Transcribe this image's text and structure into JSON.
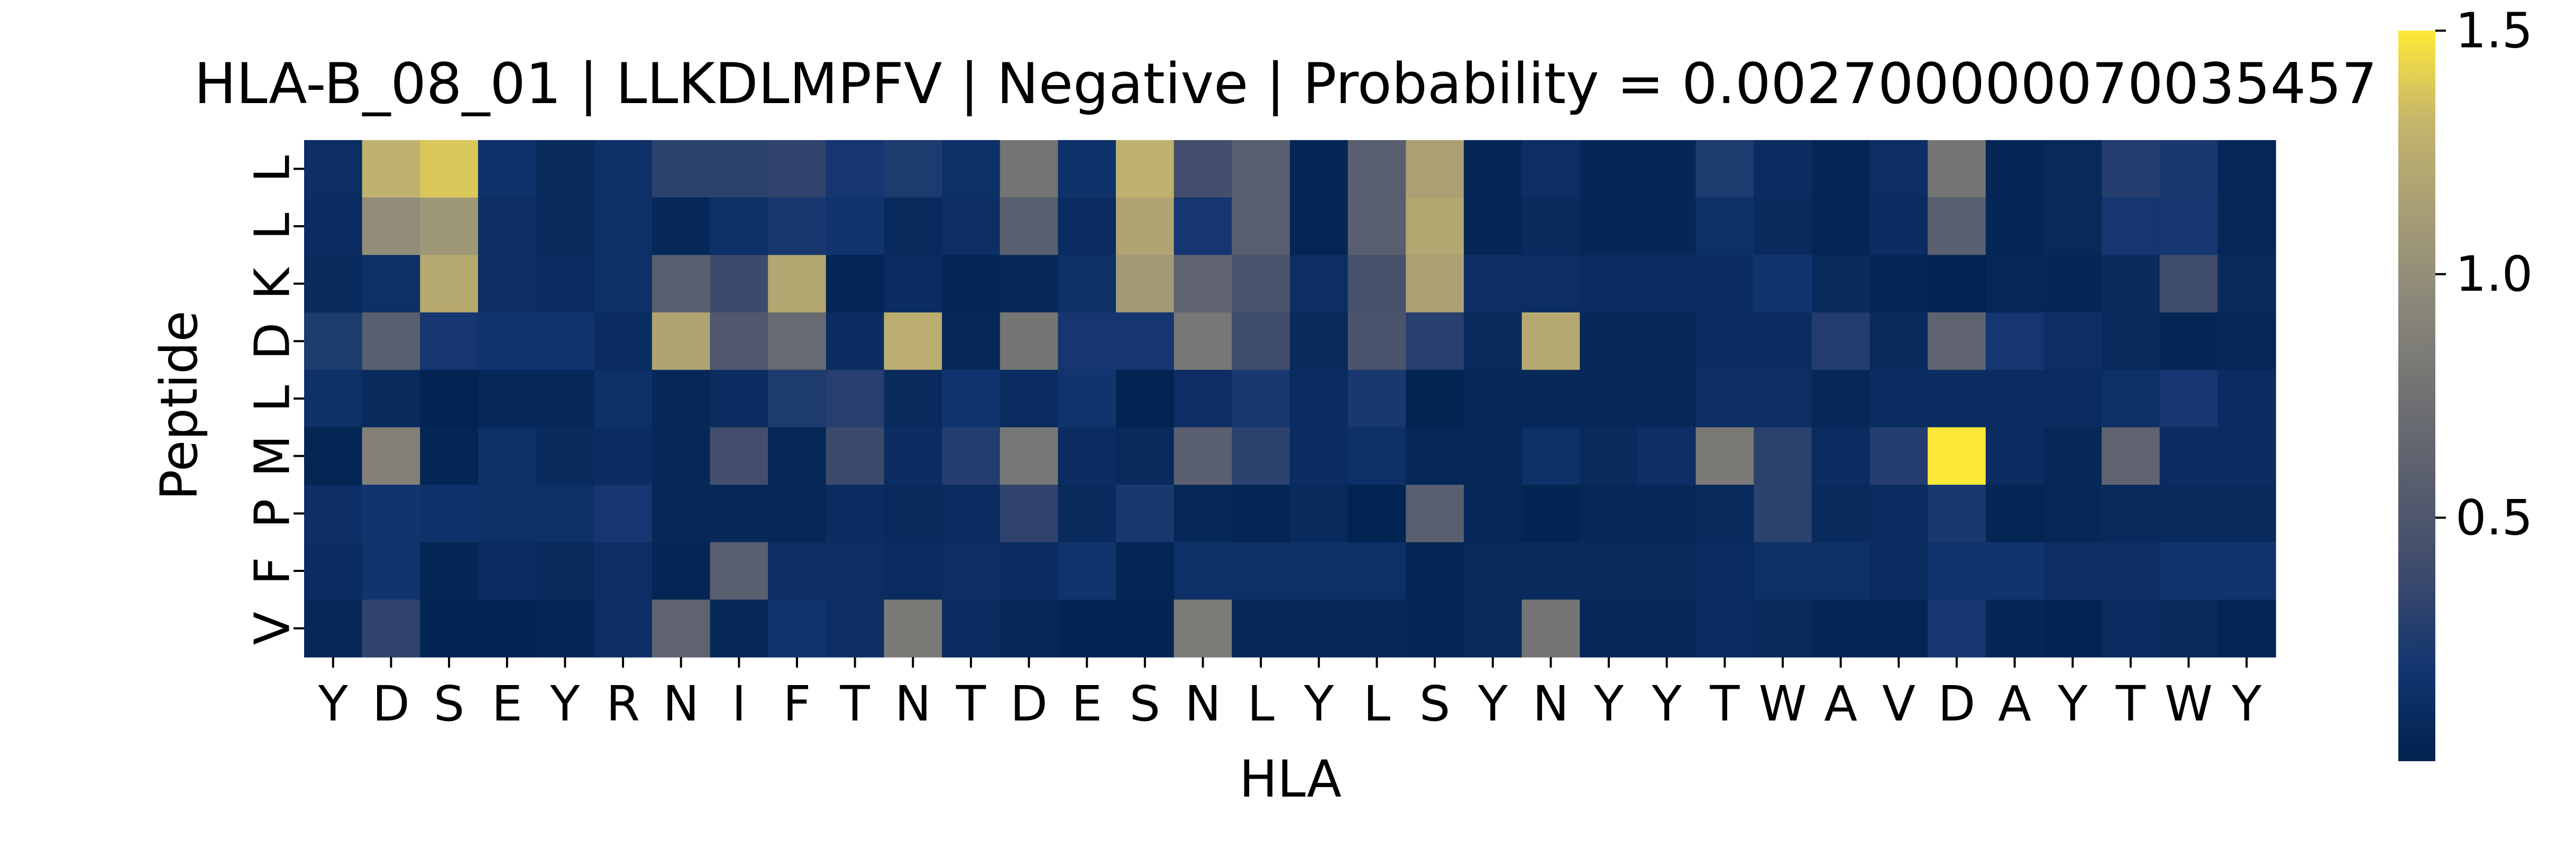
{
  "chart_data": {
    "type": "heatmap",
    "title": "HLA-B_08_01 | LLKDLMPFV | Negative | Probability = 0.002700000070035457",
    "xlabel": "HLA",
    "ylabel": "Peptide",
    "x_labels": [
      "Y",
      "D",
      "S",
      "E",
      "Y",
      "R",
      "N",
      "I",
      "F",
      "T",
      "N",
      "T",
      "D",
      "E",
      "S",
      "N",
      "L",
      "Y",
      "L",
      "S",
      "Y",
      "N",
      "Y",
      "Y",
      "T",
      "W",
      "A",
      "V",
      "D",
      "A",
      "Y",
      "T",
      "W",
      "Y"
    ],
    "y_labels": [
      "L",
      "L",
      "K",
      "D",
      "L",
      "M",
      "P",
      "F",
      "V"
    ],
    "colorbar": {
      "colormap": "cividis",
      "range": [
        0.0,
        1.5
      ],
      "ticks": [
        0.5,
        1.0,
        1.5
      ],
      "tick_labels": [
        "0.5",
        "1.0",
        "1.5"
      ]
    },
    "values": [
      [
        0.12,
        1.28,
        1.38,
        0.16,
        0.08,
        0.14,
        0.3,
        0.3,
        0.32,
        0.2,
        0.24,
        0.14,
        0.78,
        0.16,
        1.28,
        0.42,
        0.58,
        0.04,
        0.58,
        1.15,
        0.05,
        0.12,
        0.05,
        0.05,
        0.24,
        0.1,
        0.05,
        0.12,
        0.78,
        0.05,
        0.07,
        0.26,
        0.22,
        0.06
      ],
      [
        0.1,
        0.98,
        1.08,
        0.12,
        0.08,
        0.14,
        0.06,
        0.14,
        0.22,
        0.18,
        0.08,
        0.12,
        0.58,
        0.1,
        1.18,
        0.2,
        0.58,
        0.04,
        0.58,
        1.2,
        0.05,
        0.08,
        0.05,
        0.05,
        0.14,
        0.08,
        0.04,
        0.1,
        0.58,
        0.05,
        0.07,
        0.2,
        0.2,
        0.06
      ],
      [
        0.08,
        0.14,
        1.22,
        0.12,
        0.1,
        0.14,
        0.58,
        0.38,
        1.2,
        0.04,
        0.1,
        0.05,
        0.06,
        0.14,
        1.1,
        0.62,
        0.48,
        0.12,
        0.45,
        1.15,
        0.12,
        0.12,
        0.1,
        0.1,
        0.1,
        0.18,
        0.08,
        0.05,
        0.02,
        0.06,
        0.05,
        0.08,
        0.4,
        0.08
      ],
      [
        0.24,
        0.58,
        0.2,
        0.18,
        0.18,
        0.1,
        1.18,
        0.52,
        0.68,
        0.1,
        1.25,
        0.06,
        0.78,
        0.2,
        0.2,
        0.8,
        0.4,
        0.08,
        0.48,
        0.28,
        0.08,
        1.22,
        0.06,
        0.06,
        0.1,
        0.1,
        0.26,
        0.08,
        0.62,
        0.2,
        0.12,
        0.08,
        0.04,
        0.06
      ],
      [
        0.14,
        0.08,
        0.02,
        0.06,
        0.06,
        0.14,
        0.06,
        0.1,
        0.24,
        0.28,
        0.08,
        0.18,
        0.1,
        0.18,
        0.02,
        0.12,
        0.22,
        0.1,
        0.22,
        0.01,
        0.06,
        0.06,
        0.06,
        0.06,
        0.12,
        0.12,
        0.06,
        0.1,
        0.1,
        0.1,
        0.1,
        0.14,
        0.2,
        0.1
      ],
      [
        0.04,
        0.88,
        0.04,
        0.14,
        0.08,
        0.1,
        0.06,
        0.42,
        0.06,
        0.38,
        0.1,
        0.26,
        0.8,
        0.1,
        0.08,
        0.58,
        0.3,
        0.1,
        0.14,
        0.06,
        0.06,
        0.14,
        0.08,
        0.12,
        0.82,
        0.3,
        0.1,
        0.26,
        1.65,
        0.1,
        0.06,
        0.62,
        0.1,
        0.1
      ],
      [
        0.12,
        0.18,
        0.16,
        0.14,
        0.14,
        0.2,
        0.06,
        0.06,
        0.06,
        0.1,
        0.08,
        0.1,
        0.32,
        0.08,
        0.22,
        0.06,
        0.04,
        0.08,
        0.02,
        0.58,
        0.06,
        0.03,
        0.06,
        0.06,
        0.08,
        0.3,
        0.08,
        0.1,
        0.22,
        0.04,
        0.06,
        0.08,
        0.08,
        0.08
      ],
      [
        0.1,
        0.18,
        0.04,
        0.1,
        0.08,
        0.12,
        0.04,
        0.58,
        0.12,
        0.12,
        0.1,
        0.12,
        0.1,
        0.18,
        0.04,
        0.14,
        0.14,
        0.14,
        0.14,
        0.04,
        0.08,
        0.08,
        0.08,
        0.08,
        0.1,
        0.14,
        0.14,
        0.1,
        0.18,
        0.18,
        0.12,
        0.12,
        0.18,
        0.18
      ],
      [
        0.06,
        0.32,
        0.03,
        0.03,
        0.05,
        0.12,
        0.62,
        0.06,
        0.18,
        0.12,
        0.82,
        0.1,
        0.06,
        0.03,
        0.03,
        0.84,
        0.06,
        0.06,
        0.06,
        0.04,
        0.08,
        0.78,
        0.06,
        0.06,
        0.1,
        0.08,
        0.05,
        0.04,
        0.2,
        0.05,
        0.03,
        0.1,
        0.08,
        0.04
      ]
    ]
  }
}
